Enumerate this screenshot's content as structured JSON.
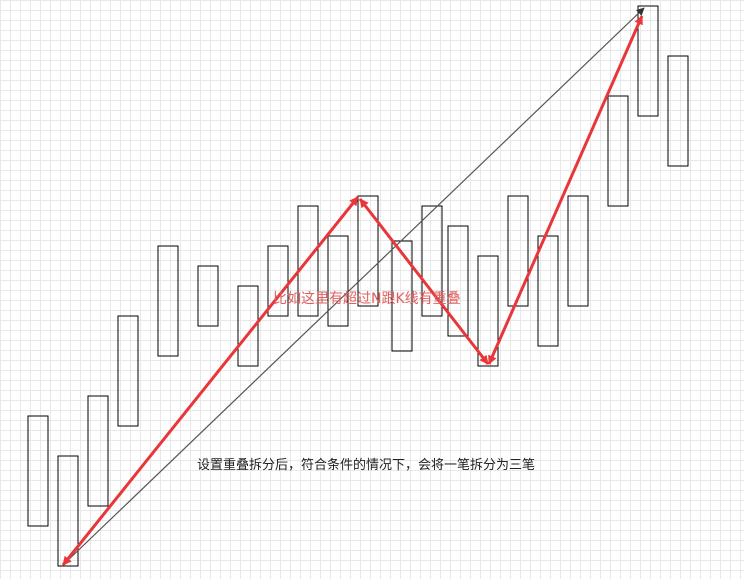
{
  "labels": {
    "overlap_note": "比如这里有超过N跟K线有重叠",
    "split_note": "设置重叠拆分后，符合条件的情况下，会将一笔拆分为三笔"
  },
  "colors": {
    "background": "#ffffff",
    "candle_stroke": "#000000",
    "trend_line": "#555555",
    "stroke_arrow": "#e8363a"
  }
}
